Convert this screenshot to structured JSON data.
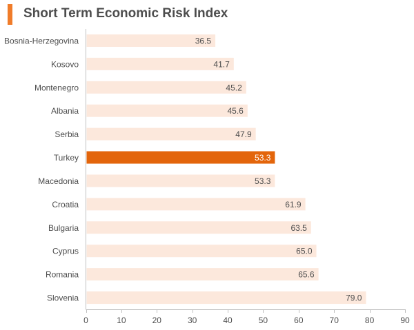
{
  "title": "Short Term Economic Risk Index",
  "chart_data": {
    "type": "bar",
    "orientation": "horizontal",
    "title": "Short Term Economic Risk Index",
    "xlabel": "",
    "ylabel": "",
    "xlim": [
      0,
      90
    ],
    "x_ticks": [
      0,
      10,
      20,
      30,
      40,
      50,
      60,
      70,
      80,
      90
    ],
    "categories": [
      "Bosnia-Herzegovina",
      "Kosovo",
      "Montenegro",
      "Albania",
      "Serbia",
      "Turkey",
      "Macedonia",
      "Croatia",
      "Bulgaria",
      "Cyprus",
      "Romania",
      "Slovenia"
    ],
    "values": [
      36.5,
      41.7,
      45.2,
      45.6,
      47.9,
      53.3,
      53.3,
      61.9,
      63.5,
      65.0,
      65.6,
      79.0
    ],
    "value_labels": [
      "36.5",
      "41.7",
      "45.2",
      "45.6",
      "47.9",
      "53.3",
      "53.3",
      "61.9",
      "63.5",
      "65.0",
      "65.6",
      "79.0"
    ],
    "highlight": "Turkey",
    "bar_color": "#fce8dc",
    "highlight_color": "#e3650b",
    "label_color": "#4d4d4d",
    "highlight_label_color": "#ffffff",
    "axis_color": "#bfbfbf"
  }
}
